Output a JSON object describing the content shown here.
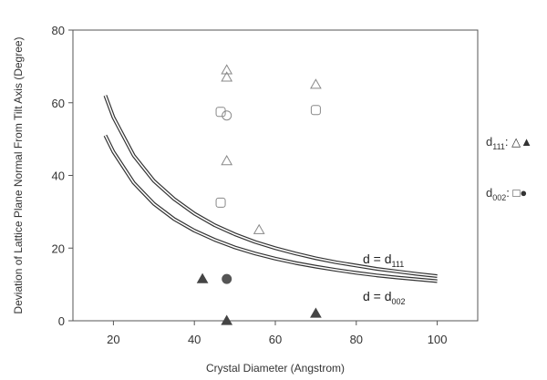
{
  "chart_data": {
    "type": "scatter",
    "xlabel": "Crystal Diameter (Angstrom)",
    "ylabel": "Deviation of Lattice Plane Normal From Tilt Axis (Degree)",
    "xlim": [
      10,
      110
    ],
    "ylim": [
      0,
      80
    ],
    "xticks": [
      "20",
      "40",
      "60",
      "80",
      "100"
    ],
    "xtick_values": [
      20,
      40,
      60,
      80,
      100
    ],
    "yticks": [
      "0",
      "20",
      "40",
      "60",
      "80"
    ],
    "ytick_values": [
      0,
      20,
      40,
      60,
      80
    ],
    "grid": false,
    "legend_position": "right",
    "curves": [
      {
        "label_main": "d = d",
        "label_sub": "111",
        "x": [
          18,
          20,
          25,
          30,
          35,
          40,
          45,
          50,
          55,
          60,
          65,
          70,
          75,
          80,
          85,
          90,
          95,
          100
        ],
        "y": [
          62,
          56,
          45.5,
          38.5,
          33.5,
          29.5,
          26.3,
          23.8,
          21.7,
          20,
          18.5,
          17.2,
          16.1,
          15.2,
          14.3,
          13.6,
          12.9,
          12.3
        ]
      },
      {
        "label_main": "d = d",
        "label_sub": "002",
        "x": [
          18,
          20,
          25,
          30,
          35,
          40,
          45,
          50,
          55,
          60,
          65,
          70,
          75,
          80,
          85,
          90,
          95,
          100
        ],
        "y": [
          51,
          46.5,
          38,
          32.2,
          28,
          24.8,
          22.3,
          20.2,
          18.5,
          17.1,
          15.9,
          14.9,
          14,
          13.2,
          12.5,
          11.9,
          11.4,
          10.9
        ]
      }
    ],
    "series": [
      {
        "marker": "triangle-open",
        "x": [
          48,
          48,
          48,
          56,
          70
        ],
        "y": [
          69,
          67,
          44,
          25,
          65
        ]
      },
      {
        "marker": "triangle-filled",
        "x": [
          42,
          48,
          70
        ],
        "y": [
          11.5,
          0,
          2
        ]
      },
      {
        "marker": "square-open",
        "x": [
          46.5,
          46.5,
          70
        ],
        "y": [
          57.5,
          32.5,
          58
        ]
      },
      {
        "marker": "circle-open",
        "x": [
          48
        ],
        "y": [
          56.5
        ]
      },
      {
        "marker": "circle-filled",
        "x": [
          48
        ],
        "y": [
          11.5
        ]
      }
    ],
    "legend": [
      {
        "main": "d",
        "sub": "111",
        "markers_text": ": △▲"
      },
      {
        "main": "d",
        "sub": "002",
        "markers_text": ": □●"
      }
    ]
  }
}
